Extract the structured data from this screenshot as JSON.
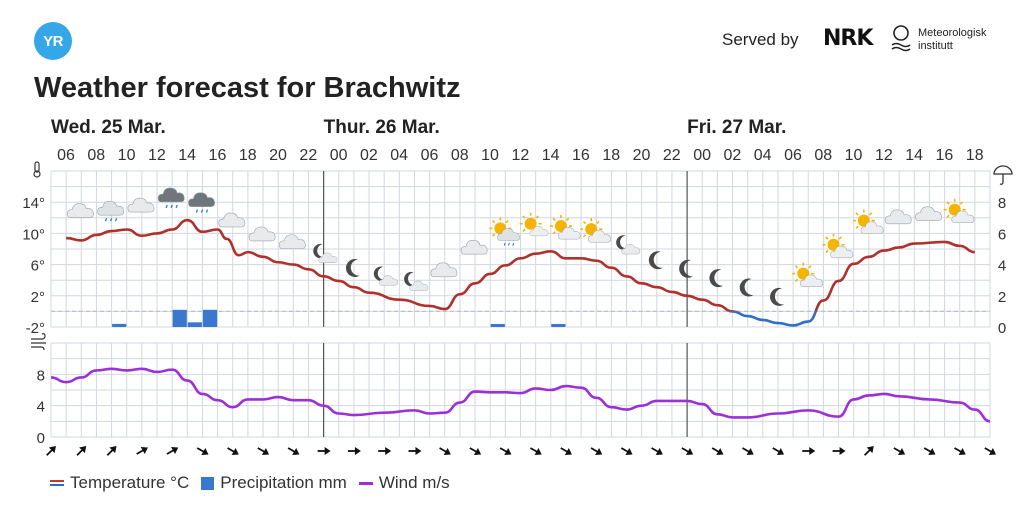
{
  "header": {
    "logo_text": "YR",
    "served_by": "Served by",
    "nrk_logo": "NRK",
    "met_line1": "Meteorologisk",
    "met_line2": "institutt",
    "title": "Weather forecast for Brachwitz"
  },
  "legend": {
    "temperature": "Temperature °C",
    "precipitation": "Precipitation mm",
    "wind": "Wind m/s"
  },
  "colors": {
    "temp_warm": "#b0302a",
    "temp_cold": "#2f6fc6",
    "precip": "#3a78d0",
    "wind": "#9b30d9",
    "grid": "#d0d8e0"
  },
  "chart_data": {
    "type": "line",
    "days": [
      {
        "label": "Wed. 25 Mar.",
        "start_index": 0
      },
      {
        "label": "Thur. 26 Mar.",
        "start_index": 9
      },
      {
        "label": "Fri. 27 Mar.",
        "start_index": 21
      }
    ],
    "hours": [
      "06",
      "08",
      "10",
      "12",
      "14",
      "16",
      "18",
      "20",
      "22",
      "00",
      "02",
      "04",
      "06",
      "08",
      "10",
      "12",
      "14",
      "16",
      "18",
      "20",
      "22",
      "00",
      "02",
      "04",
      "06",
      "08",
      "10",
      "12",
      "14",
      "16",
      "18"
    ],
    "temp_axis": {
      "ticks": [
        "14°",
        "10°",
        "6°",
        "2°",
        "-2°"
      ],
      "values": [
        14,
        10,
        6,
        2,
        -2
      ],
      "ylim": [
        -2,
        18
      ]
    },
    "precip_axis": {
      "ticks": [
        "8",
        "6",
        "4",
        "2",
        "0"
      ],
      "values": [
        8,
        6,
        4,
        2,
        0
      ],
      "ylim": [
        0,
        10
      ]
    },
    "wind_axis": {
      "ticks": [
        "8",
        "4",
        "0"
      ],
      "values": [
        8,
        4,
        0
      ],
      "ylim": [
        0,
        12
      ]
    },
    "temperature": [
      [
        0,
        9.4
      ],
      [
        0.5,
        9.1
      ],
      [
        1,
        9.8
      ],
      [
        1.5,
        10.3
      ],
      [
        2,
        10.5
      ],
      [
        2.5,
        9.7
      ],
      [
        3,
        10.0
      ],
      [
        3.5,
        10.5
      ],
      [
        4,
        11.7
      ],
      [
        4.5,
        10.2
      ],
      [
        5,
        10.5
      ],
      [
        5.3,
        9.3
      ],
      [
        5.7,
        7.2
      ],
      [
        6,
        7.6
      ],
      [
        6.5,
        7.0
      ],
      [
        7,
        6.3
      ],
      [
        7.5,
        6.0
      ],
      [
        8,
        5.4
      ],
      [
        8.5,
        4.5
      ],
      [
        9,
        3.9
      ],
      [
        9.5,
        3.1
      ],
      [
        10,
        2.4
      ],
      [
        11,
        1.5
      ],
      [
        12,
        0.7
      ],
      [
        12.5,
        0.3
      ],
      [
        13,
        2.2
      ],
      [
        13.5,
        3.6
      ],
      [
        14,
        4.8
      ],
      [
        14.5,
        5.9
      ],
      [
        15,
        6.8
      ],
      [
        15.5,
        7.4
      ],
      [
        16,
        7.7
      ],
      [
        16.5,
        6.8
      ],
      [
        17,
        6.8
      ],
      [
        17.5,
        6.5
      ],
      [
        18,
        5.6
      ],
      [
        18.5,
        4.5
      ],
      [
        19,
        3.6
      ],
      [
        19.5,
        3.1
      ],
      [
        20,
        2.5
      ],
      [
        20.5,
        2.0
      ],
      [
        21,
        1.5
      ],
      [
        21.5,
        0.8
      ],
      [
        22,
        0.0
      ],
      [
        22.5,
        -0.6
      ],
      [
        23,
        -1.1
      ],
      [
        23.5,
        -1.5
      ],
      [
        24,
        -1.8
      ],
      [
        24.5,
        -1.3
      ],
      [
        25,
        1.4
      ],
      [
        25.5,
        3.9
      ],
      [
        26,
        6.1
      ],
      [
        26.5,
        7.0
      ],
      [
        27,
        7.8
      ],
      [
        27.5,
        8.2
      ],
      [
        28,
        8.7
      ],
      [
        29,
        8.9
      ],
      [
        29.5,
        8.4
      ],
      [
        30,
        7.6
      ]
    ],
    "precipitation": [
      {
        "x": 2,
        "value": 0.2
      },
      {
        "x": 4,
        "value": 1.1
      },
      {
        "x": 4.5,
        "value": 0.3
      },
      {
        "x": 5,
        "value": 1.1
      },
      {
        "x": 14.5,
        "value": 0.1
      },
      {
        "x": 16.5,
        "value": 0.1
      }
    ],
    "wind": [
      [
        0,
        7.6
      ],
      [
        0.5,
        7.0
      ],
      [
        1,
        7.6
      ],
      [
        1.5,
        8.5
      ],
      [
        2,
        8.7
      ],
      [
        2.5,
        8.5
      ],
      [
        3,
        8.7
      ],
      [
        3.5,
        8.3
      ],
      [
        4,
        8.6
      ],
      [
        4.5,
        7.2
      ],
      [
        5,
        5.5
      ],
      [
        5.5,
        4.7
      ],
      [
        6,
        3.8
      ],
      [
        6.5,
        4.8
      ],
      [
        7,
        4.8
      ],
      [
        7.5,
        5.1
      ],
      [
        8,
        4.7
      ],
      [
        8.5,
        4.7
      ],
      [
        9,
        4.0
      ],
      [
        9.5,
        3.0
      ],
      [
        10,
        2.8
      ],
      [
        11,
        3.1
      ],
      [
        12,
        3.4
      ],
      [
        12.5,
        3.0
      ],
      [
        13,
        3.1
      ],
      [
        13.5,
        4.4
      ],
      [
        14,
        5.8
      ],
      [
        14.5,
        5.7
      ],
      [
        15,
        5.7
      ],
      [
        15.5,
        5.6
      ],
      [
        16,
        6.2
      ],
      [
        16.5,
        6.0
      ],
      [
        17,
        6.5
      ],
      [
        17.5,
        6.3
      ],
      [
        18,
        5.0
      ],
      [
        18.5,
        3.8
      ],
      [
        19,
        3.5
      ],
      [
        19.5,
        4.0
      ],
      [
        20,
        4.6
      ],
      [
        21,
        4.6
      ],
      [
        21.5,
        4.2
      ],
      [
        22,
        2.9
      ],
      [
        22.5,
        2.5
      ],
      [
        23,
        2.5
      ],
      [
        24,
        3.0
      ],
      [
        25,
        3.4
      ],
      [
        26,
        2.6
      ],
      [
        26.5,
        4.8
      ],
      [
        27,
        5.3
      ],
      [
        27.5,
        5.5
      ],
      [
        28,
        5.2
      ],
      [
        29,
        4.8
      ],
      [
        30,
        4.4
      ],
      [
        30.5,
        3.5
      ],
      [
        31,
        2.0
      ]
    ],
    "icons": [
      {
        "x": 1,
        "type": "cloud",
        "temp_y": 12.8
      },
      {
        "x": 2,
        "type": "cloud-rain",
        "temp_y": 13.1
      },
      {
        "x": 3,
        "type": "cloud",
        "temp_y": 13.5
      },
      {
        "x": 4,
        "type": "dark-cloud-rain",
        "temp_y": 14.8
      },
      {
        "x": 5,
        "type": "dark-cloud-rain",
        "temp_y": 14.2
      },
      {
        "x": 6,
        "type": "cloud",
        "temp_y": 11.6
      },
      {
        "x": 7,
        "type": "cloud",
        "temp_y": 9.8
      },
      {
        "x": 8,
        "type": "cloud",
        "temp_y": 8.8
      },
      {
        "x": 9,
        "type": "moon-cloud",
        "temp_y": 7.3
      },
      {
        "x": 10,
        "type": "moon",
        "temp_y": 5.5
      },
      {
        "x": 11,
        "type": "moon-cloud",
        "temp_y": 4.4
      },
      {
        "x": 12,
        "type": "moon-cloud",
        "temp_y": 3.7
      },
      {
        "x": 13,
        "type": "cloud",
        "temp_y": 5.2
      },
      {
        "x": 14,
        "type": "cloud",
        "temp_y": 8.1
      },
      {
        "x": 15,
        "type": "sun-cloud-rain",
        "temp_y": 10.0
      },
      {
        "x": 16,
        "type": "sun",
        "temp_y": 10.6
      },
      {
        "x": 17,
        "type": "sun-cloud",
        "temp_y": 10.3
      },
      {
        "x": 18,
        "type": "sun-cloud",
        "temp_y": 9.9
      },
      {
        "x": 19,
        "type": "moon-cloud",
        "temp_y": 8.4
      },
      {
        "x": 20,
        "type": "moon",
        "temp_y": 6.5
      },
      {
        "x": 21,
        "type": "moon",
        "temp_y": 5.4
      },
      {
        "x": 22,
        "type": "moon",
        "temp_y": 4.2
      },
      {
        "x": 23,
        "type": "moon",
        "temp_y": 3.0
      },
      {
        "x": 24,
        "type": "moon",
        "temp_y": 1.8
      },
      {
        "x": 25,
        "type": "sun-cloud",
        "temp_y": 4.2
      },
      {
        "x": 26,
        "type": "sun-cloud",
        "temp_y": 7.9
      },
      {
        "x": 27,
        "type": "sun-cloud",
        "temp_y": 11.0
      },
      {
        "x": 28,
        "type": "cloud",
        "temp_y": 12.0
      },
      {
        "x": 29,
        "type": "cloud",
        "temp_y": 12.4
      },
      {
        "x": 30,
        "type": "sun-cloud",
        "temp_y": 12.4
      }
    ],
    "wind_arrows": [
      45,
      45,
      45,
      60,
      60,
      120,
      120,
      120,
      120,
      90,
      90,
      90,
      90,
      120,
      120,
      120,
      120,
      120,
      120,
      120,
      120,
      120,
      120,
      120,
      120,
      90,
      90,
      45,
      120,
      120,
      120,
      120
    ]
  }
}
